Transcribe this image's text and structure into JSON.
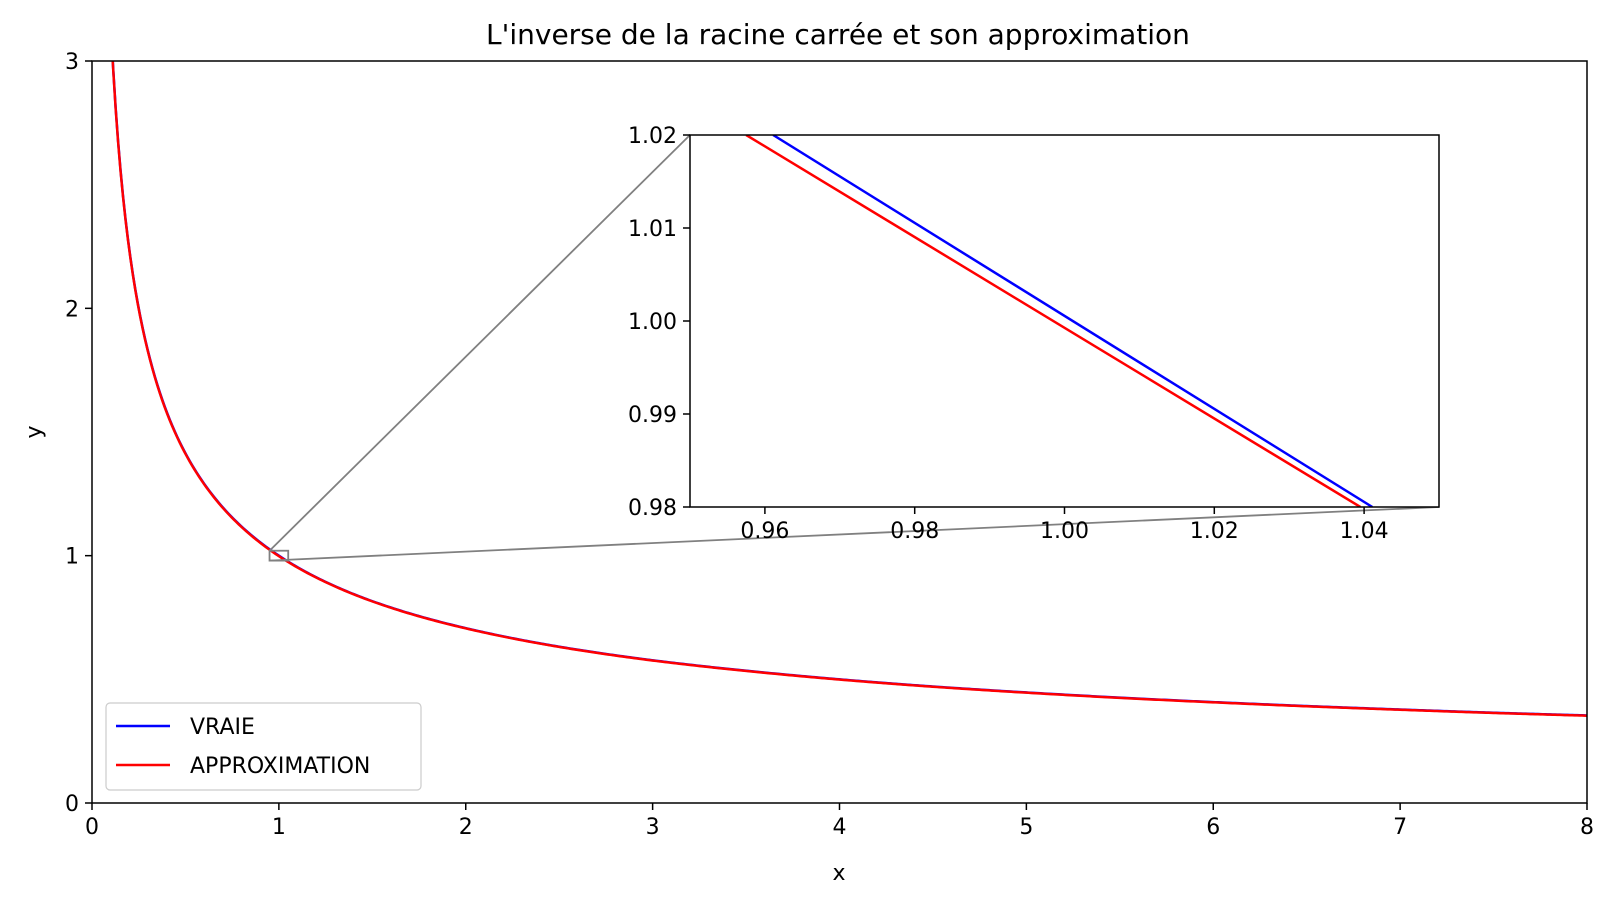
{
  "chart_data": {
    "type": "line",
    "title": "L'inverse de la racine carrée et son approximation",
    "xlabel": "x",
    "ylabel": "y",
    "xlim": [
      0,
      8
    ],
    "ylim": [
      0,
      3
    ],
    "xticks": [
      "0",
      "1",
      "2",
      "3",
      "4",
      "5",
      "6",
      "7",
      "8"
    ],
    "yticks": [
      "0",
      "1",
      "2",
      "3"
    ],
    "grid": false,
    "legend": {
      "placement": "lower-left"
    },
    "series": [
      {
        "name": "VRAIE",
        "color": "#0000ff",
        "x": [
          0.1,
          0.15,
          0.2,
          0.25,
          0.3,
          0.4,
          0.5,
          0.6,
          0.8,
          1.0,
          1.25,
          1.5,
          2.0,
          2.5,
          3.0,
          3.5,
          4.0,
          4.5,
          5.0,
          5.5,
          6.0,
          6.5,
          7.0,
          7.5,
          8.0
        ],
        "y": [
          3.162,
          2.582,
          2.236,
          2.0,
          1.826,
          1.581,
          1.414,
          1.291,
          1.118,
          1.0,
          0.894,
          0.816,
          0.707,
          0.632,
          0.577,
          0.535,
          0.5,
          0.471,
          0.447,
          0.426,
          0.408,
          0.392,
          0.378,
          0.365,
          0.354
        ]
      },
      {
        "name": "APPROXIMATION",
        "color": "#ff0000",
        "x": [
          0.1,
          0.15,
          0.2,
          0.25,
          0.3,
          0.4,
          0.5,
          0.6,
          0.8,
          1.0,
          1.25,
          1.5,
          2.0,
          2.5,
          3.0,
          3.5,
          4.0,
          4.5,
          5.0,
          5.5,
          6.0,
          6.5,
          7.0,
          7.5,
          8.0
        ],
        "y": [
          3.157,
          2.578,
          2.233,
          1.997,
          1.823,
          1.578,
          1.412,
          1.289,
          1.116,
          0.998,
          0.893,
          0.815,
          0.706,
          0.631,
          0.576,
          0.534,
          0.499,
          0.47,
          0.446,
          0.425,
          0.407,
          0.391,
          0.377,
          0.364,
          0.353
        ]
      }
    ],
    "inset": {
      "xlim": [
        0.95,
        1.05
      ],
      "ylim": [
        0.98,
        1.02
      ],
      "xticks": [
        "0.96",
        "0.98",
        "1.00",
        "1.02",
        "1.04"
      ],
      "yticks": [
        "0.98",
        "0.99",
        "1.00",
        "1.01",
        "1.02"
      ],
      "series": [
        {
          "name": "VRAIE",
          "color": "#0000ff",
          "x": [
            0.9611,
            1.0411
          ],
          "y": [
            1.02,
            0.98
          ]
        },
        {
          "name": "APPROXIMATION",
          "color": "#ff0000",
          "x": [
            0.9575,
            1.0395
          ],
          "y": [
            1.02,
            0.98
          ]
        }
      ],
      "connector_color": "#808080"
    }
  }
}
